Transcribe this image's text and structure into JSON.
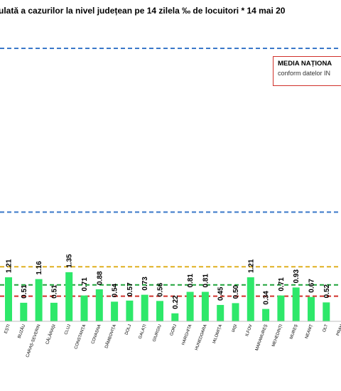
{
  "chart_data": {
    "type": "bar",
    "title": "ulată a cazurilor la nivel județean pe 14 zilela ‰ de locuitori *  14 mai 20",
    "categories": [
      "EȘTI",
      "BUZĂU",
      "CARAȘ-SEVERIN",
      "CĂLĂRAȘI",
      "CLUJ",
      "CONSTANȚA",
      "COVASNA",
      "DÂMBOVIȚA",
      "DOLJ",
      "GALAȚI",
      "GIURGIU",
      "GORJ",
      "HARGHITA",
      "HUNEDOARA",
      "IALOMIȚA",
      "IAȘI",
      "ILFOV",
      "MARAMUREȘ",
      "MEHEDINȚI",
      "MUREȘ",
      "NEAMȚ",
      "OLT",
      "PRAH"
    ],
    "values": [
      1.21,
      0.51,
      1.16,
      0.51,
      1.35,
      0.71,
      0.88,
      0.54,
      0.57,
      0.73,
      0.56,
      0.22,
      0.81,
      0.81,
      0.45,
      0.5,
      1.21,
      0.34,
      0.71,
      0.93,
      0.67,
      0.52,
      null
    ],
    "value_labels": [
      "1.21",
      "0.51",
      "1.16",
      "0.51",
      "1.35",
      "0.71",
      "0.88",
      "0.54",
      "0.57",
      "0.73",
      "0.56",
      "0.22",
      "0.81",
      "0.81",
      "0.45",
      "0.50",
      "1.21",
      "0.34",
      "0.71",
      "0.93",
      "0.67",
      "0.52",
      ""
    ],
    "reference_lines": [
      {
        "value": 7.5,
        "color": "#3a78c9",
        "style": "dashed"
      },
      {
        "value": 3.0,
        "color": "#3a78c9",
        "style": "dashed"
      },
      {
        "value": 1.5,
        "color": "#e0b020",
        "style": "dashed"
      },
      {
        "value": 1.0,
        "color": "#1fa33a",
        "style": "dashed"
      },
      {
        "value": 0.69,
        "color": "#d0302a",
        "style": "dashed"
      }
    ],
    "bar_color": "#2ee86a",
    "ylim": [
      0,
      8.3
    ]
  },
  "legend": {
    "title": "MEDIA NAȚIONA",
    "subtitle": "conform datelor IN"
  }
}
